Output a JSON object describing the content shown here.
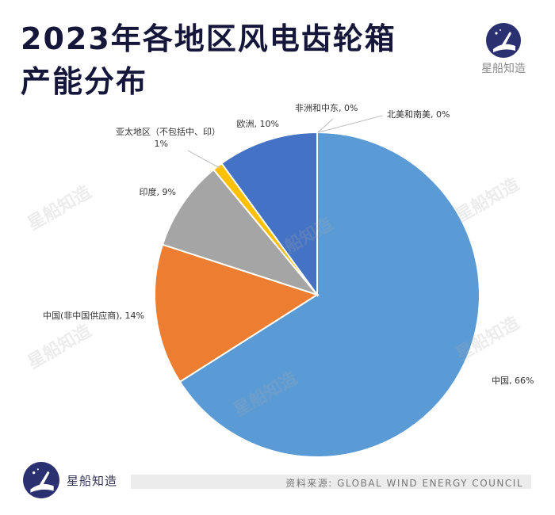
{
  "header": {
    "title_line1": "2023年各地区风电齿轮箱",
    "title_line2": "产能分布"
  },
  "brand": {
    "name": "星船知造",
    "logo_icon": "rocket-logo-icon",
    "colors": {
      "logo_bg": "#2b3170",
      "title": "#15163a"
    }
  },
  "watermark_text": "星船知造",
  "footer": {
    "source": "资料来源: GLOBAL WIND ENERGY COUNCIL"
  },
  "chart_data": {
    "type": "pie",
    "title": "",
    "start": "top",
    "direction": "clockwise",
    "slices": [
      {
        "name": "中国",
        "value": 66,
        "label": "中国, 66%",
        "color": "#5b9bd5"
      },
      {
        "name": "中国(非中国供应商)",
        "value": 14,
        "label": "中国(非中国供应商), 14%",
        "color": "#ed7d31"
      },
      {
        "name": "印度",
        "value": 9,
        "label": "印度, 9%",
        "color": "#a5a5a5"
      },
      {
        "name": "亚太地区（不包括中、印）",
        "value": 1,
        "label_line1": "亚太地区（不包括中、印）",
        "label_line2": "1%",
        "color": "#ffc000"
      },
      {
        "name": "欧洲",
        "value": 10,
        "label": "欧洲, 10%",
        "color": "#4472c4"
      },
      {
        "name": "非洲和中东",
        "value": 0,
        "label": "非洲和中东, 0%",
        "color": "#70ad47"
      },
      {
        "name": "北美和南美",
        "value": 0,
        "label": "北美和南美, 0%",
        "color": "#264478"
      }
    ]
  }
}
